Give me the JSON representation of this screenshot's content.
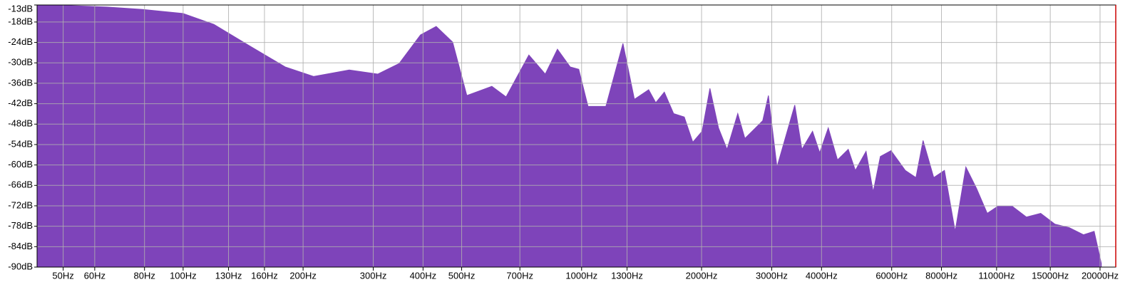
{
  "chart_data": {
    "type": "area",
    "log_x": true,
    "grid": true,
    "color": "#7e44ba",
    "x": [
      43.0,
      52.4,
      64.4,
      79.1,
      100,
      119.4,
      146.7,
      180.3,
      212.5,
      261.1,
      307.8,
      348.4,
      394.2,
      431.6,
      474.6,
      515.2,
      595.3,
      646.3,
      737.3,
      810.6,
      869.6,
      936.3,
      983.6,
      1037.8,
      1150.5,
      1269.8,
      1356.7,
      1473.3,
      1534.9,
      1612.8,
      1701.6,
      1809.9,
      1901.4,
      2005.9,
      2098.9,
      2205.5,
      2317.2,
      2465.3,
      2569.0,
      2732.7,
      2847.7,
      2943.0,
      3091.9,
      3222.0,
      3427.0,
      3571.0,
      3798.0,
      3958.0,
      4159.0,
      4387.0,
      4668.0,
      4864.0,
      5174.0,
      5392.0,
      5619.0,
      5976.0,
      6491.0,
      6902.0,
      7193.0,
      7650.0,
      8139.0,
      8659.0,
      9210.0,
      9797.0,
      10420,
      11084,
      12035,
      13069,
      14193,
      15410,
      16735,
      18172,
      19330,
      20145
    ],
    "values": [
      -13.0,
      -13.2,
      -13.6,
      -14.3,
      -15.5,
      -18.7,
      -25.0,
      -31.2,
      -34.0,
      -32.1,
      -33.3,
      -30.2,
      -21.8,
      -19.3,
      -23.9,
      -39.6,
      -36.9,
      -40.0,
      -27.7,
      -33.3,
      -26.0,
      -31.2,
      -31.9,
      -42.8,
      -42.8,
      -24.3,
      -40.7,
      -37.9,
      -41.7,
      -38.6,
      -44.9,
      -45.9,
      -53.3,
      -50.1,
      -37.5,
      -49.1,
      -55.4,
      -44.9,
      -52.2,
      -49.1,
      -47.0,
      -39.6,
      -60.6,
      -53.3,
      -42.4,
      -55.4,
      -50.1,
      -56.4,
      -49.1,
      -58.5,
      -55.4,
      -61.6,
      -56.0,
      -67.9,
      -57.5,
      -55.8,
      -61.6,
      -63.7,
      -52.8,
      -63.7,
      -61.6,
      -79.5,
      -60.6,
      -66.9,
      -74.2,
      -72.1,
      -72.1,
      -75.3,
      -74.2,
      -77.4,
      -78.4,
      -80.5,
      -79.5,
      -88.9
    ],
    "xlim": [
      43,
      21900
    ],
    "ylim": [
      -90,
      -13
    ],
    "xticks": [
      {
        "value": 50,
        "label": "50Hz"
      },
      {
        "value": 60,
        "label": "60Hz"
      },
      {
        "value": 80,
        "label": "80Hz"
      },
      {
        "value": 100,
        "label": "100Hz"
      },
      {
        "value": 130,
        "label": "130Hz"
      },
      {
        "value": 160,
        "label": "160Hz"
      },
      {
        "value": 200,
        "label": "200Hz"
      },
      {
        "value": 300,
        "label": "300Hz"
      },
      {
        "value": 400,
        "label": "400Hz"
      },
      {
        "value": 500,
        "label": "500Hz"
      },
      {
        "value": 700,
        "label": "700Hz"
      },
      {
        "value": 1000,
        "label": "1000Hz"
      },
      {
        "value": 1300,
        "label": "1300Hz"
      },
      {
        "value": 2000,
        "label": "2000Hz"
      },
      {
        "value": 3000,
        "label": "3000Hz"
      },
      {
        "value": 4000,
        "label": "4000Hz"
      },
      {
        "value": 6000,
        "label": "6000Hz"
      },
      {
        "value": 8000,
        "label": "8000Hz"
      },
      {
        "value": 11000,
        "label": "11000Hz"
      },
      {
        "value": 15000,
        "label": "15000Hz"
      },
      {
        "value": 20000,
        "label": "20000Hz"
      }
    ],
    "yticks": [
      {
        "value": -13,
        "label": "-13dB"
      },
      {
        "value": -18,
        "label": "-18dB"
      },
      {
        "value": -24,
        "label": "-24dB"
      },
      {
        "value": -30,
        "label": "-30dB"
      },
      {
        "value": -36,
        "label": "-36dB"
      },
      {
        "value": -42,
        "label": "-42dB"
      },
      {
        "value": -48,
        "label": "-48dB"
      },
      {
        "value": -54,
        "label": "-54dB"
      },
      {
        "value": -60,
        "label": "-60dB"
      },
      {
        "value": -66,
        "label": "-66dB"
      },
      {
        "value": -72,
        "label": "-72dB"
      },
      {
        "value": -78,
        "label": "-78dB"
      },
      {
        "value": -84,
        "label": "-84dB"
      },
      {
        "value": -90,
        "label": "-90dB"
      }
    ]
  }
}
